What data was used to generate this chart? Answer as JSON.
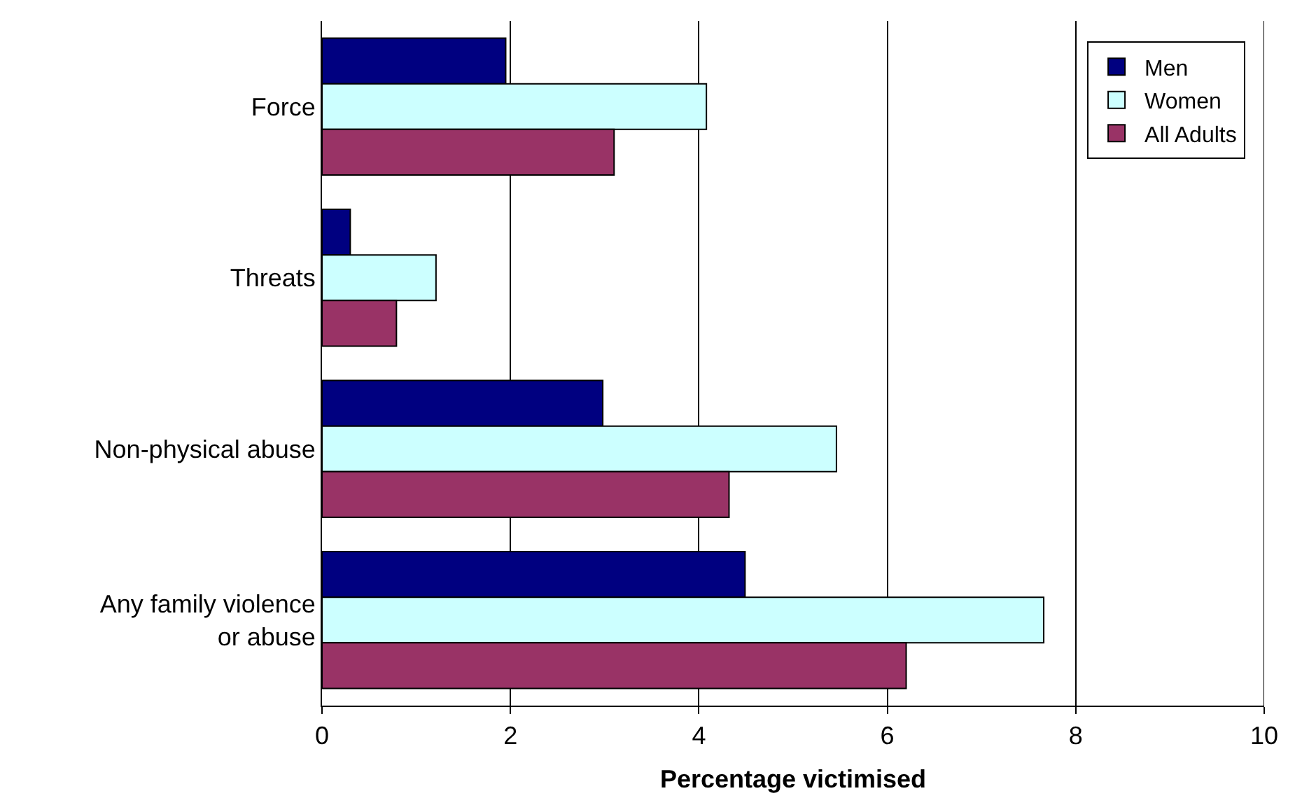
{
  "chart_data": {
    "type": "bar",
    "orientation": "horizontal",
    "xlabel": "Percentage victimised",
    "categories": [
      "Force",
      "Threats",
      "Non-physical abuse",
      "Any family violence\nor abuse"
    ],
    "series": [
      {
        "name": "Men",
        "color": "#000080",
        "values": [
          1.95,
          0.3,
          2.98,
          4.49
        ]
      },
      {
        "name": "Women",
        "color": "#ccffff",
        "values": [
          4.08,
          1.21,
          5.46,
          7.66
        ]
      },
      {
        "name": "All Adults",
        "color": "#993366",
        "values": [
          3.1,
          0.79,
          4.32,
          6.2
        ]
      }
    ],
    "xlim": [
      0,
      10
    ],
    "xticks": [
      0,
      2,
      4,
      6,
      8,
      10
    ],
    "grid": "x",
    "legend": "top right"
  }
}
